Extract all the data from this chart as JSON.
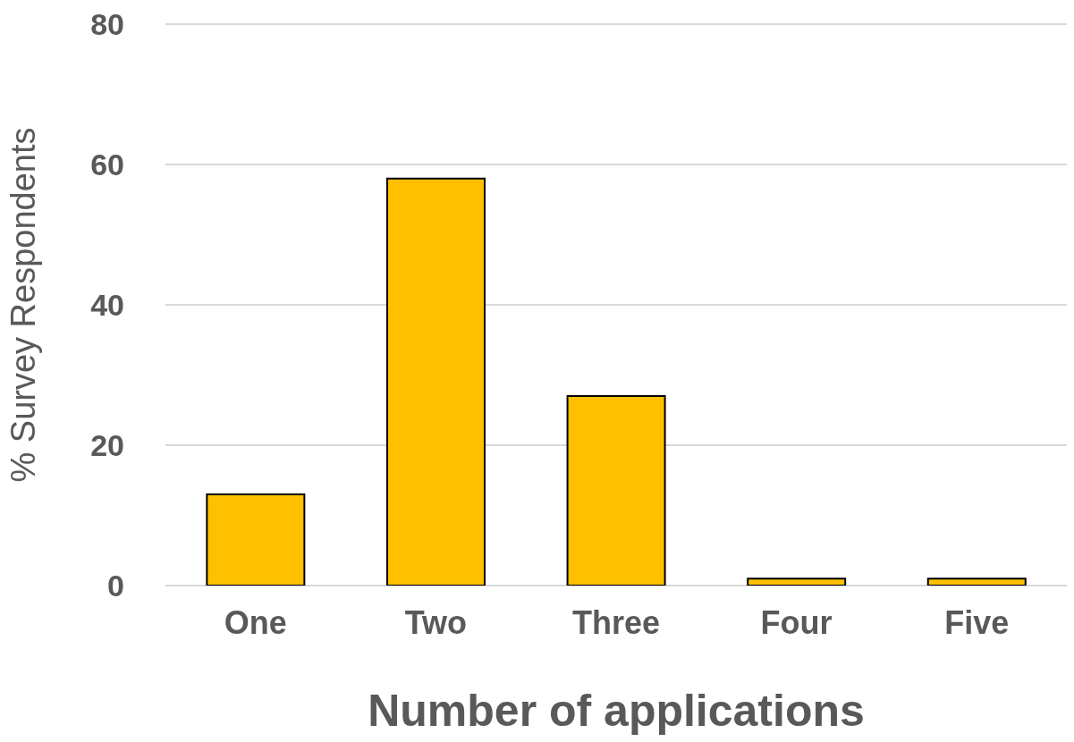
{
  "chart_data": {
    "type": "bar",
    "xlabel": "Number of applications",
    "ylabel": "% Survey Respondents",
    "categories": [
      "One",
      "Two",
      "Three",
      "Four",
      "Five"
    ],
    "values": [
      13,
      58,
      27,
      1,
      1
    ],
    "color": "#ffc000",
    "ylim": [
      0,
      80
    ],
    "yticks": [
      0,
      20,
      40,
      60,
      80
    ],
    "grid": "y",
    "legend": false
  }
}
